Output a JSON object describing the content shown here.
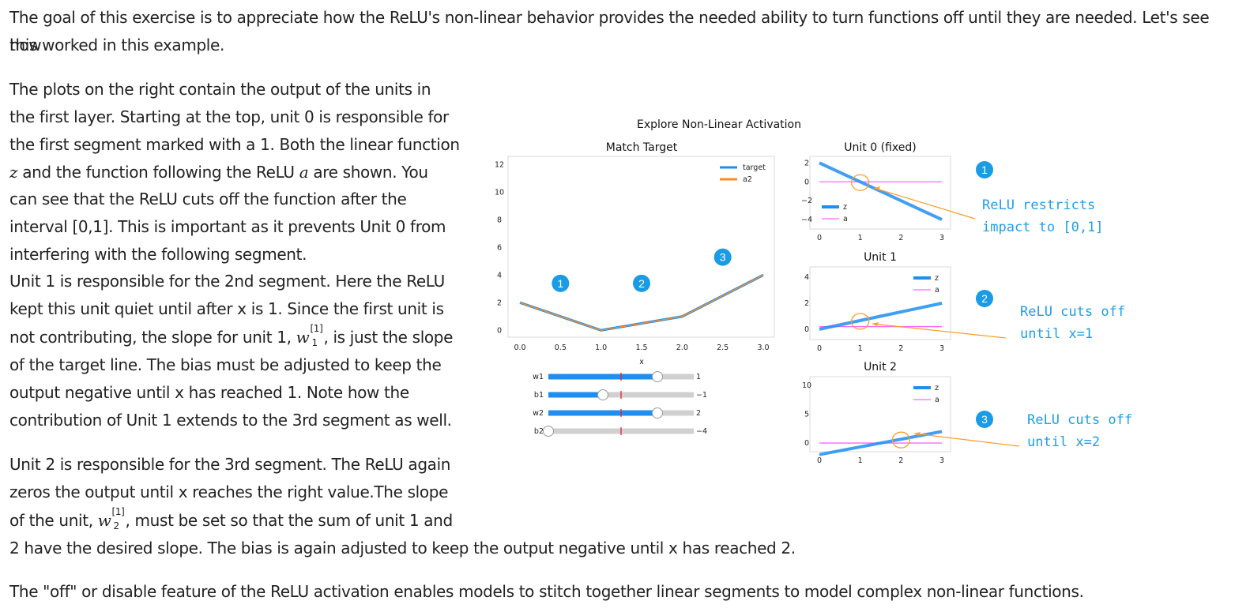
{
  "text": {
    "intro_a": "The goal of this exercise is to appreciate how the ReLU's non-linear behavior provides the needed ability to turn functions off until they are needed. Let's see how",
    "intro_b": "this worked in this example.",
    "unit0_lines": [
      "The plots on the right contain the output of the units in",
      "the first layer. Starting at the top, unit 0 is responsible for",
      "the first segment marked with a 1. Both the linear function"
    ],
    "unit0_z": "z",
    "unit0_mid": "and the function following the ReLU",
    "unit0_a": "a",
    "unit0_end": "are shown. You",
    "unit0_lines2": [
      "can see that the ReLU cuts off the function after the",
      "interval [0,1]. This is important as it prevents Unit 0 from",
      "interfering with the following segment.",
      "Unit 1 is responsible for the 2nd segment. Here the ReLU",
      "kept this unit quiet until after x is 1. Since the first unit is"
    ],
    "unit1_pre": "not contributing, the slope for unit 1,",
    "w_sym": "w",
    "sup1": "[1]",
    "sub_1": "1",
    "sub_2": "2",
    "unit1_post": ", is just the slope",
    "unit1_lines": [
      "of the target line. The bias must be adjusted to keep the",
      "output negative until x has reached 1. Note how the",
      "contribution of Unit 1 extends to the 3rd segment as well."
    ],
    "unit2_lines": [
      "Unit 2 is responsible for the 3rd segment. The ReLU again",
      "zeros the output until x reaches the right value.The slope"
    ],
    "unit2_pre": "of the unit,",
    "unit2_post": ", must be set so that the sum of unit 1 and",
    "unit2_last": "2 have the desired slope. The bias is again adjusted to keep the output negative until x has reached 2.",
    "closing": "The \"off\" or disable feature of the ReLU activation enables models to stitch together linear segments to model complex non-linear functions."
  },
  "figure": {
    "suptitle": "Explore Non-Linear Activation",
    "main": {
      "title": "Match Target",
      "xlabel": "x",
      "xticks": [
        "0.0",
        "0.5",
        "1.0",
        "1.5",
        "2.0",
        "2.5",
        "3.0"
      ],
      "yticks": [
        "0",
        "2",
        "4",
        "6",
        "8",
        "10",
        "12"
      ],
      "legend": [
        "target",
        "a2"
      ],
      "markers": [
        "1",
        "2",
        "3"
      ]
    },
    "sliders": [
      {
        "name": "w1",
        "value": 1,
        "display": "1",
        "min": -2,
        "max": 2
      },
      {
        "name": "b1",
        "value": -1,
        "display": "-1",
        "min": -4,
        "max": 4
      },
      {
        "name": "w2",
        "value": 2,
        "display": "2",
        "min": -4,
        "max": 4
      },
      {
        "name": "b2",
        "value": -4,
        "display": "-4",
        "min": -4,
        "max": 4
      }
    ],
    "units": [
      {
        "title": "Unit 0 (fixed)",
        "xticks": [
          "0",
          "1",
          "2",
          "3"
        ],
        "yticks": [
          "2",
          "0",
          "-2",
          "-4"
        ],
        "legend": [
          "z",
          "a"
        ]
      },
      {
        "title": "Unit 1",
        "xticks": [
          "0",
          "1",
          "2",
          "3"
        ],
        "yticks": [
          "4",
          "2",
          "0"
        ],
        "legend": [
          "z",
          "a"
        ]
      },
      {
        "title": "Unit 2",
        "xticks": [
          "0",
          "1",
          "2",
          "3"
        ],
        "yticks": [
          "10",
          "5",
          "0"
        ],
        "legend": [
          "z",
          "a"
        ]
      }
    ],
    "annotations": [
      {
        "num": "1",
        "lines": [
          "ReLU restricts",
          "impact to [0,1]"
        ]
      },
      {
        "num": "2",
        "lines": [
          "ReLU cuts off",
          "until x=1"
        ]
      },
      {
        "num": "3",
        "lines": [
          "ReLU cuts off",
          "until x=2"
        ]
      }
    ],
    "colors": {
      "target": "#1f8ef1",
      "a2": "#ff8c1a",
      "z": "#1f8ef1",
      "a": "#ff66ff",
      "annotation": "#1f9ee8",
      "marker": "#1a9be6"
    }
  },
  "chart_data": {
    "type": "line",
    "title": "Match Target",
    "xlabel": "x",
    "ylabel": "",
    "xlim": [
      0,
      3
    ],
    "ylim": [
      0,
      12
    ],
    "x": [
      0,
      1,
      2,
      3
    ],
    "series": [
      {
        "name": "target",
        "values": [
          2,
          0,
          1,
          4
        ]
      },
      {
        "name": "a2",
        "values": [
          2,
          0,
          1,
          4
        ]
      }
    ]
  }
}
